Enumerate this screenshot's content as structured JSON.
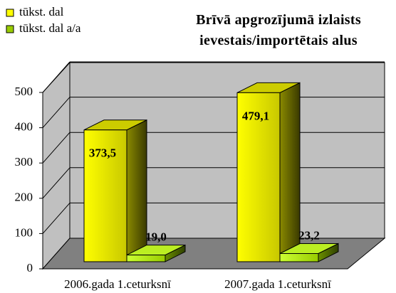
{
  "chart_data": {
    "type": "bar3d",
    "title": "Brīvā apgrozījumā izlaists ievestais/importētais alus",
    "categories": [
      "2006.gada 1.ceturksnī",
      "2007.gada 1.ceturksnī"
    ],
    "series": [
      {
        "name": "tūkst. dal",
        "color": "#ffff00",
        "values": [
          373.5,
          479.1
        ],
        "value_labels": [
          "373,5",
          "479,1"
        ]
      },
      {
        "name": "tūkst. dal a/a",
        "color": "#99cc00",
        "values": [
          19.0,
          23.2
        ],
        "value_labels": [
          "19,0",
          "23,2"
        ]
      }
    ],
    "ylim": [
      0,
      500
    ],
    "yticks": [
      0,
      100,
      200,
      300,
      400,
      500
    ],
    "grid": true,
    "legend": "top-left"
  }
}
